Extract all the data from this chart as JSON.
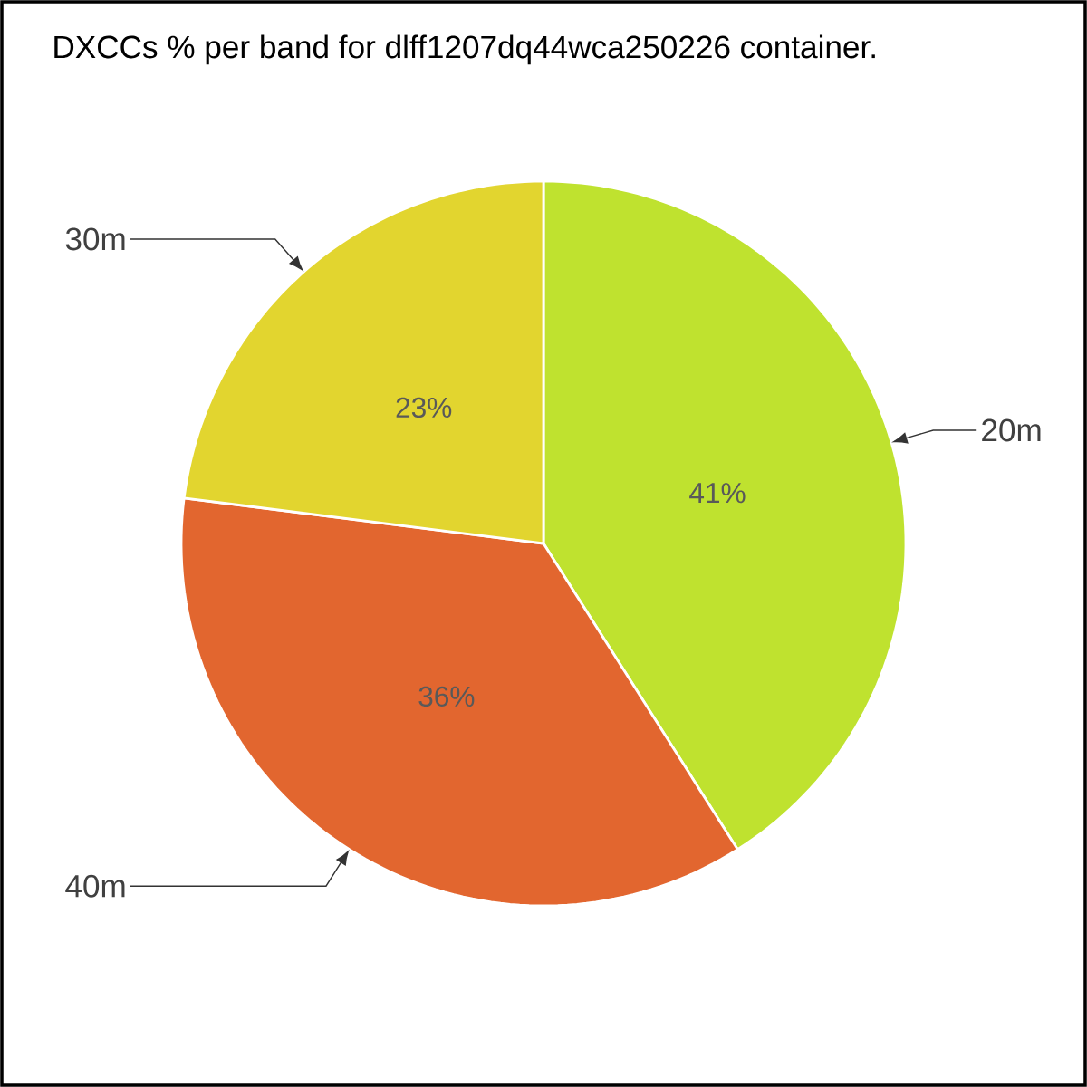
{
  "chart_data": {
    "type": "pie",
    "title": "DXCCs % per band for dlff1207dq44wca250226 container.",
    "categories": [
      "20m",
      "40m",
      "30m"
    ],
    "values": [
      41,
      36,
      23
    ],
    "value_labels": [
      "41%",
      "36%",
      "23%"
    ],
    "colors": [
      "#bfe22f",
      "#e2662f",
      "#e2d52f"
    ]
  }
}
